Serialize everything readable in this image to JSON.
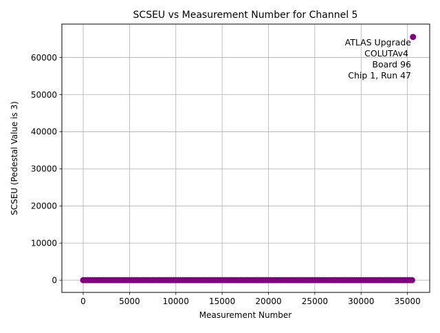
{
  "chart_data": {
    "type": "scatter",
    "title": "SCSEU vs Measurement Number for Channel 5",
    "xlabel": "Measurement Number",
    "ylabel": "SCSEU (Pedestal Value is 3)",
    "xlim": [
      -2300,
      37400
    ],
    "ylim": [
      -3300,
      69000
    ],
    "xticks": [
      0,
      5000,
      10000,
      15000,
      20000,
      25000,
      30000,
      35000
    ],
    "yticks": [
      0,
      10000,
      20000,
      30000,
      40000,
      50000,
      60000
    ],
    "xtick_labels": [
      "0",
      "5000",
      "10000",
      "15000",
      "20000",
      "25000",
      "30000",
      "35000"
    ],
    "ytick_labels": [
      "0",
      "10000",
      "20000",
      "30000",
      "40000",
      "50000",
      "60000"
    ],
    "grid": true,
    "marker_color": "#800080",
    "series": [
      {
        "baseline": {
          "x_start": 0,
          "x_end": 35520,
          "x_step": 250,
          "y": 3
        },
        "outliers": [
          {
            "x": 35600,
            "y": 65535
          }
        ]
      }
    ],
    "annotation": {
      "lines": [
        "ATLAS Upgrade",
        "COLUTAv4",
        "Board 96",
        "Chip 1, Run 47"
      ],
      "placement": "top-right"
    }
  }
}
